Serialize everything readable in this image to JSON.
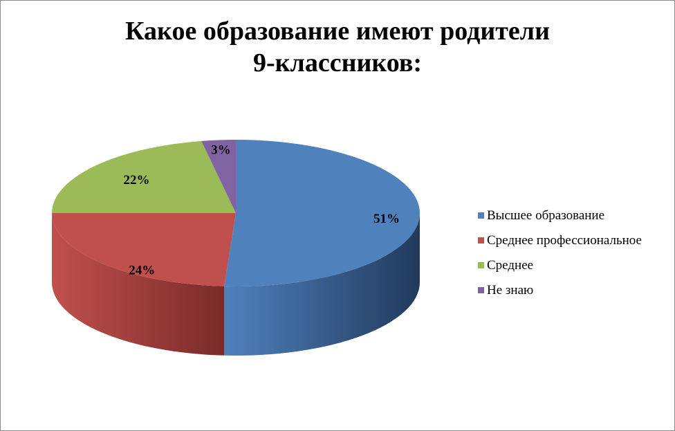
{
  "chart_data": {
    "type": "pie",
    "title_lines": [
      "Какое образование имеют родители",
      "9-классников:"
    ],
    "categories": [
      "Высшее образование",
      "Среднее профессиональное",
      "Среднее",
      "Не знаю"
    ],
    "values": [
      51,
      24,
      22,
      3
    ],
    "data_labels": [
      "51%",
      "24%",
      "22%",
      "3%"
    ],
    "colors": [
      "#4f81bd",
      "#c0504d",
      "#9bbb59",
      "#8064a2"
    ],
    "side_colors": [
      "#213a5c",
      "#7a2b29",
      "#5d7a2e",
      "#4e3b66"
    ],
    "legend_position": "right",
    "three_d": true
  }
}
